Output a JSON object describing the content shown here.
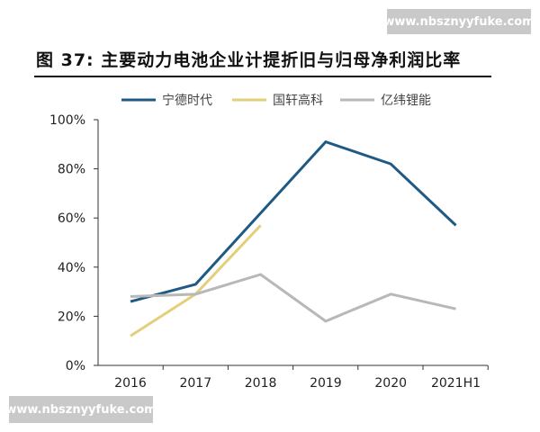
{
  "watermark_top": "www.nbsznyyfuke.com",
  "watermark_bottom": "www.nbsznyyfuke.com",
  "chart_data": {
    "type": "line",
    "title": "图 37: 主要动力电池企业计提折旧与归母净利润比率",
    "categories": [
      "2016",
      "2017",
      "2018",
      "2019",
      "2020",
      "2021H1"
    ],
    "ylim": [
      0,
      100
    ],
    "yticks": [
      "0%",
      "20%",
      "40%",
      "60%",
      "80%",
      "100%"
    ],
    "grid": false,
    "legend_position": "top",
    "series": [
      {
        "name": "宁德时代",
        "color": "#1f5a85",
        "values": [
          26,
          33,
          62,
          91,
          82,
          57
        ]
      },
      {
        "name": "国轩高科",
        "color": "#e3cf7a",
        "values": [
          12,
          29,
          57,
          null,
          null,
          null
        ]
      },
      {
        "name": "亿纬锂能",
        "color": "#b8b8b8",
        "values": [
          28,
          29,
          37,
          18,
          29,
          23
        ]
      }
    ]
  }
}
